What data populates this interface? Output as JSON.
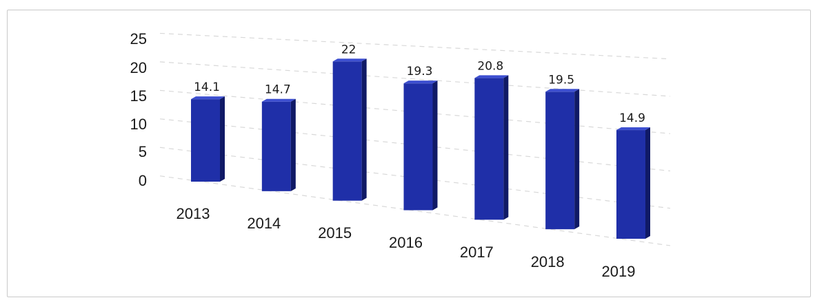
{
  "chart_data": {
    "type": "bar",
    "title": "",
    "xlabel": "",
    "ylabel": "",
    "categories": [
      "2013",
      "2014",
      "2015",
      "2016",
      "2017",
      "2018",
      "2019"
    ],
    "values": [
      14.1,
      14.7,
      22,
      19.3,
      20.8,
      19.5,
      14.9
    ],
    "data_labels": [
      "14.1",
      "14.7",
      "22",
      "19.3",
      "20.8",
      "19.5",
      "14.9"
    ],
    "y_ticks": [
      "0",
      "5",
      "10",
      "15",
      "20",
      "25"
    ],
    "ylim": [
      0,
      25
    ],
    "grid": true,
    "legend": "none",
    "style": "3d-column",
    "colors": {
      "bar_front": "#1f2fa8",
      "bar_side": "#101a66",
      "bar_top": "#3d4fd0",
      "grid": "#d8d8d8"
    }
  }
}
